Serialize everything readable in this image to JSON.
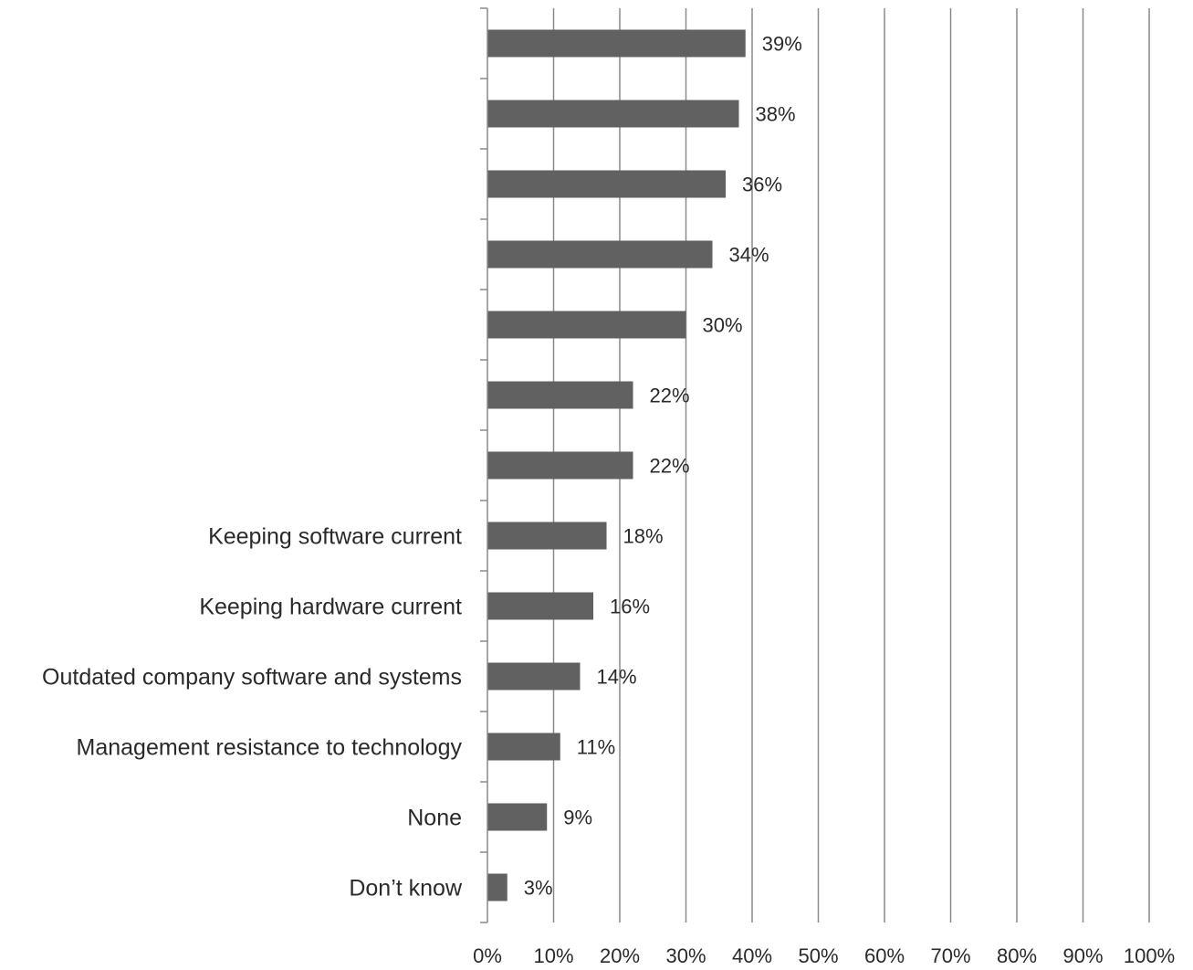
{
  "chart_data": {
    "type": "bar",
    "orientation": "horizontal",
    "categories": [
      "",
      "",
      "",
      "",
      "",
      "",
      "",
      "Keeping software current",
      "Keeping hardware current",
      "Outdated company software and systems",
      "Management resistance to technology",
      "None",
      "Don’t know"
    ],
    "values": [
      39,
      38,
      36,
      34,
      30,
      22,
      22,
      18,
      16,
      14,
      11,
      9,
      3
    ],
    "value_labels": [
      "39%",
      "38%",
      "36%",
      "34%",
      "30%",
      "22%",
      "22%",
      "18%",
      "16%",
      "14%",
      "11%",
      "9%",
      "3%"
    ],
    "x_ticks": [
      "0%",
      "10%",
      "20%",
      "30%",
      "40%",
      "50%",
      "60%",
      "70%",
      "80%",
      "90%",
      "100%"
    ],
    "xlim": [
      0,
      100
    ],
    "grid": "vertical",
    "legend": "none",
    "colors": {
      "bar": "#616161",
      "grid": "#8a8a8a",
      "axis": "#8a8a8a",
      "text": "#2a2a2a"
    }
  }
}
